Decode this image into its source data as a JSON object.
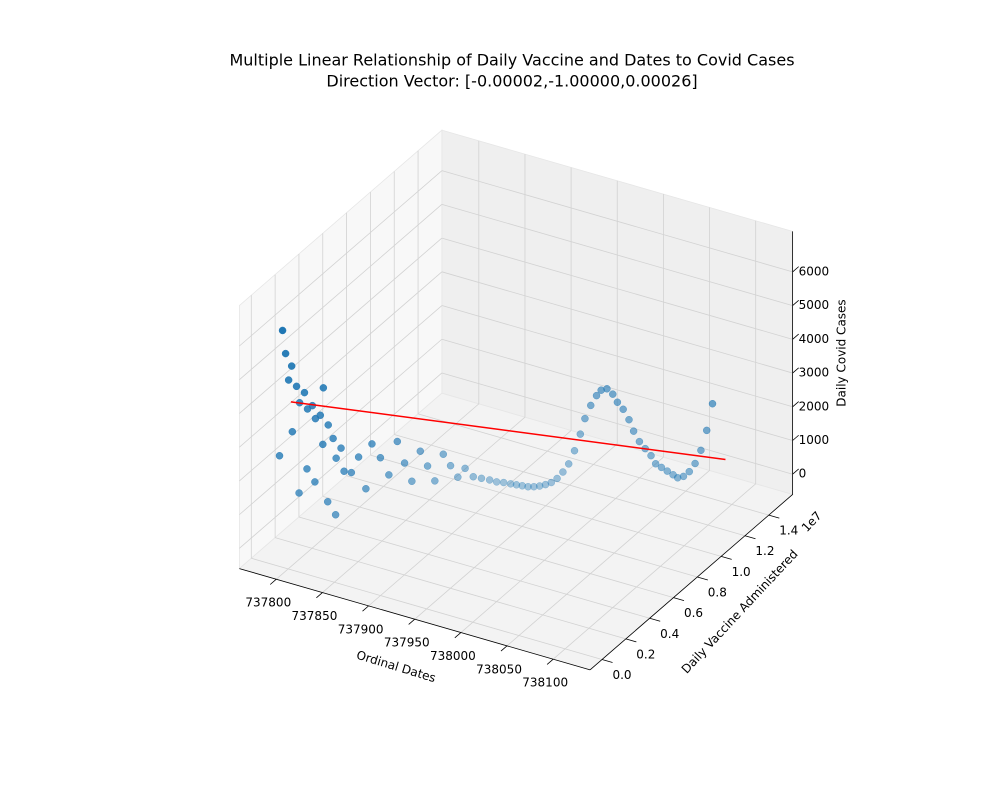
{
  "chart_data": {
    "type": "scatter3d",
    "title": "Multiple Linear Relationship of Daily Vaccine and Dates to Covid Cases",
    "subtitle": "Direction Vector: [-0.00002,-1.00000,0.00026]",
    "xlabel": "Ordinal Dates",
    "ylabel": "Daily Vaccine Administered",
    "y_offset_label": "1e7",
    "zlabel": "Daily Covid Cases",
    "color": "#1f77b4",
    "line_color": "#ff0000",
    "xlim": [
      737760,
      738140
    ],
    "ylim": [
      -0.1,
      1.6
    ],
    "zlim": [
      -600,
      7200
    ],
    "xticks": [
      737800,
      737850,
      737900,
      737950,
      738000,
      738050,
      738100
    ],
    "yticks": [
      {
        "value": 0,
        "label": "0.0"
      },
      0.2,
      0.4,
      0.6,
      0.8,
      {
        "value": 1,
        "label": "1.0"
      },
      1.2,
      1.4
    ],
    "zticks": [
      0,
      1000,
      2000,
      3000,
      4000,
      5000,
      6000
    ],
    "grid": true,
    "x": [
      737788,
      737790,
      737792,
      737794,
      737796,
      737798,
      737800,
      737802,
      737804,
      737806,
      737808,
      737810,
      737812,
      737814,
      737816,
      737818,
      737820,
      737822,
      737824,
      737826,
      737828,
      737830,
      737832,
      737834,
      737836,
      737840,
      737844,
      737848,
      737852,
      737856,
      737860,
      737864,
      737868,
      737872,
      737876,
      737880,
      737884,
      737888,
      737892,
      737896,
      737900,
      737905,
      737910,
      737915,
      737920,
      737925,
      737930,
      737935,
      737940,
      737945,
      737950,
      737955,
      737960,
      737965,
      737970,
      737975,
      737980,
      737985,
      737990,
      737995,
      738000,
      738005,
      738010,
      738015,
      738020,
      738025,
      738030,
      738035,
      738040,
      738045,
      738050,
      738055,
      738060,
      738065,
      738070,
      738075,
      738080,
      738085,
      738090,
      738095,
      738100,
      738105,
      738110
    ],
    "y": [
      0.02,
      0.03,
      0.04,
      0.05,
      0.06,
      0.05,
      0.07,
      0.08,
      0.06,
      0.09,
      0.1,
      0.08,
      0.11,
      0.12,
      0.1,
      0.13,
      0.14,
      0.12,
      0.15,
      0.13,
      0.16,
      0.17,
      0.15,
      0.18,
      0.19,
      0.22,
      0.25,
      0.28,
      0.3,
      0.34,
      0.38,
      0.42,
      0.45,
      0.48,
      0.52,
      0.55,
      0.58,
      0.62,
      0.65,
      0.68,
      0.71,
      0.74,
      0.77,
      0.8,
      0.82,
      0.84,
      0.86,
      0.87,
      0.88,
      0.89,
      0.9,
      0.91,
      0.92,
      0.93,
      0.94,
      0.95,
      0.96,
      0.97,
      0.98,
      0.98,
      0.99,
      1.0,
      1.0,
      1.01,
      1.02,
      1.02,
      1.03,
      1.04,
      1.04,
      1.05,
      1.06,
      1.07,
      1.07,
      1.08,
      1.09,
      1.1,
      1.1,
      1.11,
      1.12,
      1.13,
      1.14,
      1.15,
      1.16
    ],
    "z": [
      2600,
      6300,
      5600,
      4800,
      5200,
      3300,
      4600,
      4100,
      1500,
      4400,
      3900,
      2200,
      4000,
      3600,
      1800,
      3700,
      4500,
      2900,
      3400,
      1200,
      3000,
      2400,
      800,
      2700,
      2000,
      1900,
      2300,
      1300,
      2600,
      2100,
      1500,
      2400,
      1700,
      1100,
      1900,
      1400,
      900,
      1600,
      1200,
      800,
      1000,
      700,
      600,
      500,
      420,
      380,
      320,
      300,
      280,
      260,
      270,
      300,
      350,
      420,
      550,
      750,
      1000,
      1400,
      1900,
      2400,
      2800,
      3100,
      3300,
      3350,
      3200,
      3000,
      2800,
      2500,
      2200,
      1900,
      1700,
      1500,
      1300,
      1200,
      1100,
      1000,
      950,
      1000,
      1150,
      1400,
      1800,
      2400,
      3200
    ],
    "fit_line": {
      "x": [
        737790,
        738115
      ],
      "y": [
        0.1,
        1.23
      ],
      "z": [
        3970,
        1370
      ]
    }
  }
}
